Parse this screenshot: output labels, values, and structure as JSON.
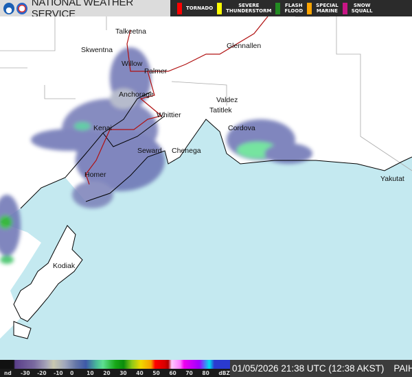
{
  "header": {
    "title": "NATIONAL WEATHER SERVICE",
    "logos": [
      "noaa-logo",
      "nws-logo"
    ],
    "hazards": [
      {
        "label": "TORNADO",
        "color": "#ff0000"
      },
      {
        "label": "SEVERE\nTHUNDERSTORM",
        "color": "#ffff00"
      },
      {
        "label": "FLASH\nFLOOD",
        "color": "#228b22"
      },
      {
        "label": "SPECIAL\nMARINE",
        "color": "#ffa500"
      },
      {
        "label": "SNOW\nSQUALL",
        "color": "#c71585"
      }
    ]
  },
  "map": {
    "cities": [
      "Talkeetna",
      "Skwentna",
      "Glennallen",
      "Willow",
      "Palmer",
      "Anchorage",
      "Valdez",
      "Tatitlek",
      "Whittier",
      "Kenai",
      "Cordova",
      "Seward",
      "Chenega",
      "Homer",
      "Yakutat",
      "Kodiak"
    ],
    "colors": {
      "water": "#c4e9f0",
      "land": "#ffffff",
      "road": "#b01010",
      "border": "#000000"
    }
  },
  "footer": {
    "scale_ticks": [
      "nd",
      "-30",
      "-20",
      "-10",
      "0",
      "10",
      "20",
      "30",
      "40",
      "50",
      "60",
      "70",
      "80",
      "dBZ"
    ],
    "timestamp": "01/05/2026 21:38 UTC (12:38 AKST)",
    "radar_site": "PAIH"
  }
}
